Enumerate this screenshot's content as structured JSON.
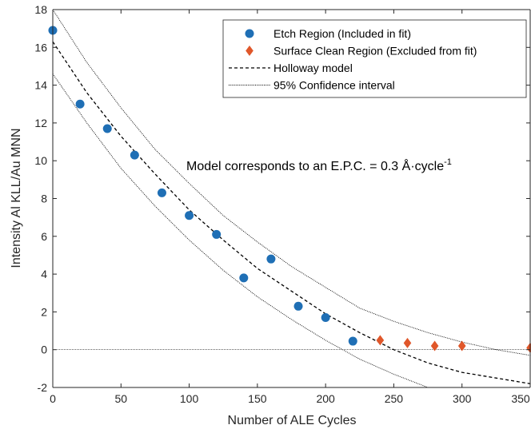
{
  "chart_data": {
    "type": "scatter",
    "xlabel": "Number of ALE Cycles",
    "ylabel": "Intensity Al KLL/Au MNN",
    "xlim": [
      0,
      350
    ],
    "ylim": [
      -2,
      18
    ],
    "xticks": [
      0,
      50,
      100,
      150,
      200,
      250,
      300,
      350
    ],
    "yticks": [
      -2,
      0,
      2,
      4,
      6,
      8,
      10,
      12,
      14,
      16,
      18
    ],
    "grid": false,
    "legend_position": "top-right",
    "annotation": {
      "text": "Model corresponds to an E.P.C. = 0.3 Å·cycle",
      "superscript": "-1"
    },
    "colors": {
      "etch": "#1f6fb5",
      "surface_clean": "#e0572a",
      "lines": "#000000"
    },
    "series": [
      {
        "name": "Etch Region (Included in fit)",
        "marker": "circle",
        "x": [
          0,
          20,
          40,
          60,
          80,
          100,
          120,
          140,
          160,
          180,
          200,
          220
        ],
        "y": [
          16.9,
          13.0,
          11.7,
          10.3,
          8.3,
          7.1,
          6.1,
          3.8,
          4.8,
          2.3,
          1.7,
          0.45
        ]
      },
      {
        "name": "Surface Clean Region (Excluded from fit)",
        "marker": "diamond",
        "x": [
          240,
          260,
          280,
          300,
          350
        ],
        "y": [
          0.5,
          0.35,
          0.2,
          0.2,
          0.1
        ]
      },
      {
        "name": "Holloway model",
        "style": "dashed",
        "x": [
          0,
          25,
          50,
          75,
          100,
          125,
          150,
          175,
          200,
          225,
          250,
          275,
          300,
          325,
          350
        ],
        "y": [
          16.3,
          13.6,
          11.3,
          9.3,
          7.4,
          5.8,
          4.3,
          3.1,
          1.9,
          0.9,
          0.0,
          -0.7,
          -1.2,
          -1.5,
          -1.8
        ]
      },
      {
        "name": "95% Confidence interval",
        "style": "dotted",
        "x": [
          0,
          25,
          50,
          75,
          100,
          125,
          150,
          175,
          200,
          225,
          250,
          275,
          300,
          325,
          350
        ],
        "y": [
          18.0,
          15.2,
          12.8,
          10.6,
          8.8,
          7.1,
          5.7,
          4.4,
          3.3,
          2.2,
          1.5,
          0.9,
          0.4,
          0.0,
          -0.3
        ]
      },
      {
        "style": "dotted",
        "x": [
          0,
          25,
          50,
          75,
          100,
          125,
          150,
          175,
          200,
          225,
          250,
          275,
          300
        ],
        "y": [
          14.6,
          12.0,
          9.6,
          7.6,
          5.8,
          4.2,
          2.8,
          1.6,
          0.5,
          -0.5,
          -1.3,
          -2.0,
          -2.7
        ]
      },
      {
        "style": "zero-line",
        "x": [
          0,
          350
        ],
        "y": [
          0,
          0
        ]
      }
    ],
    "legend": [
      {
        "label": "Etch Region (Included in fit)",
        "symbol": "circle"
      },
      {
        "label": "Surface Clean Region (Excluded from fit)",
        "symbol": "diamond"
      },
      {
        "label": "Holloway model",
        "symbol": "dashed"
      },
      {
        "label": "95% Confidence interval",
        "symbol": "dotted"
      }
    ]
  }
}
